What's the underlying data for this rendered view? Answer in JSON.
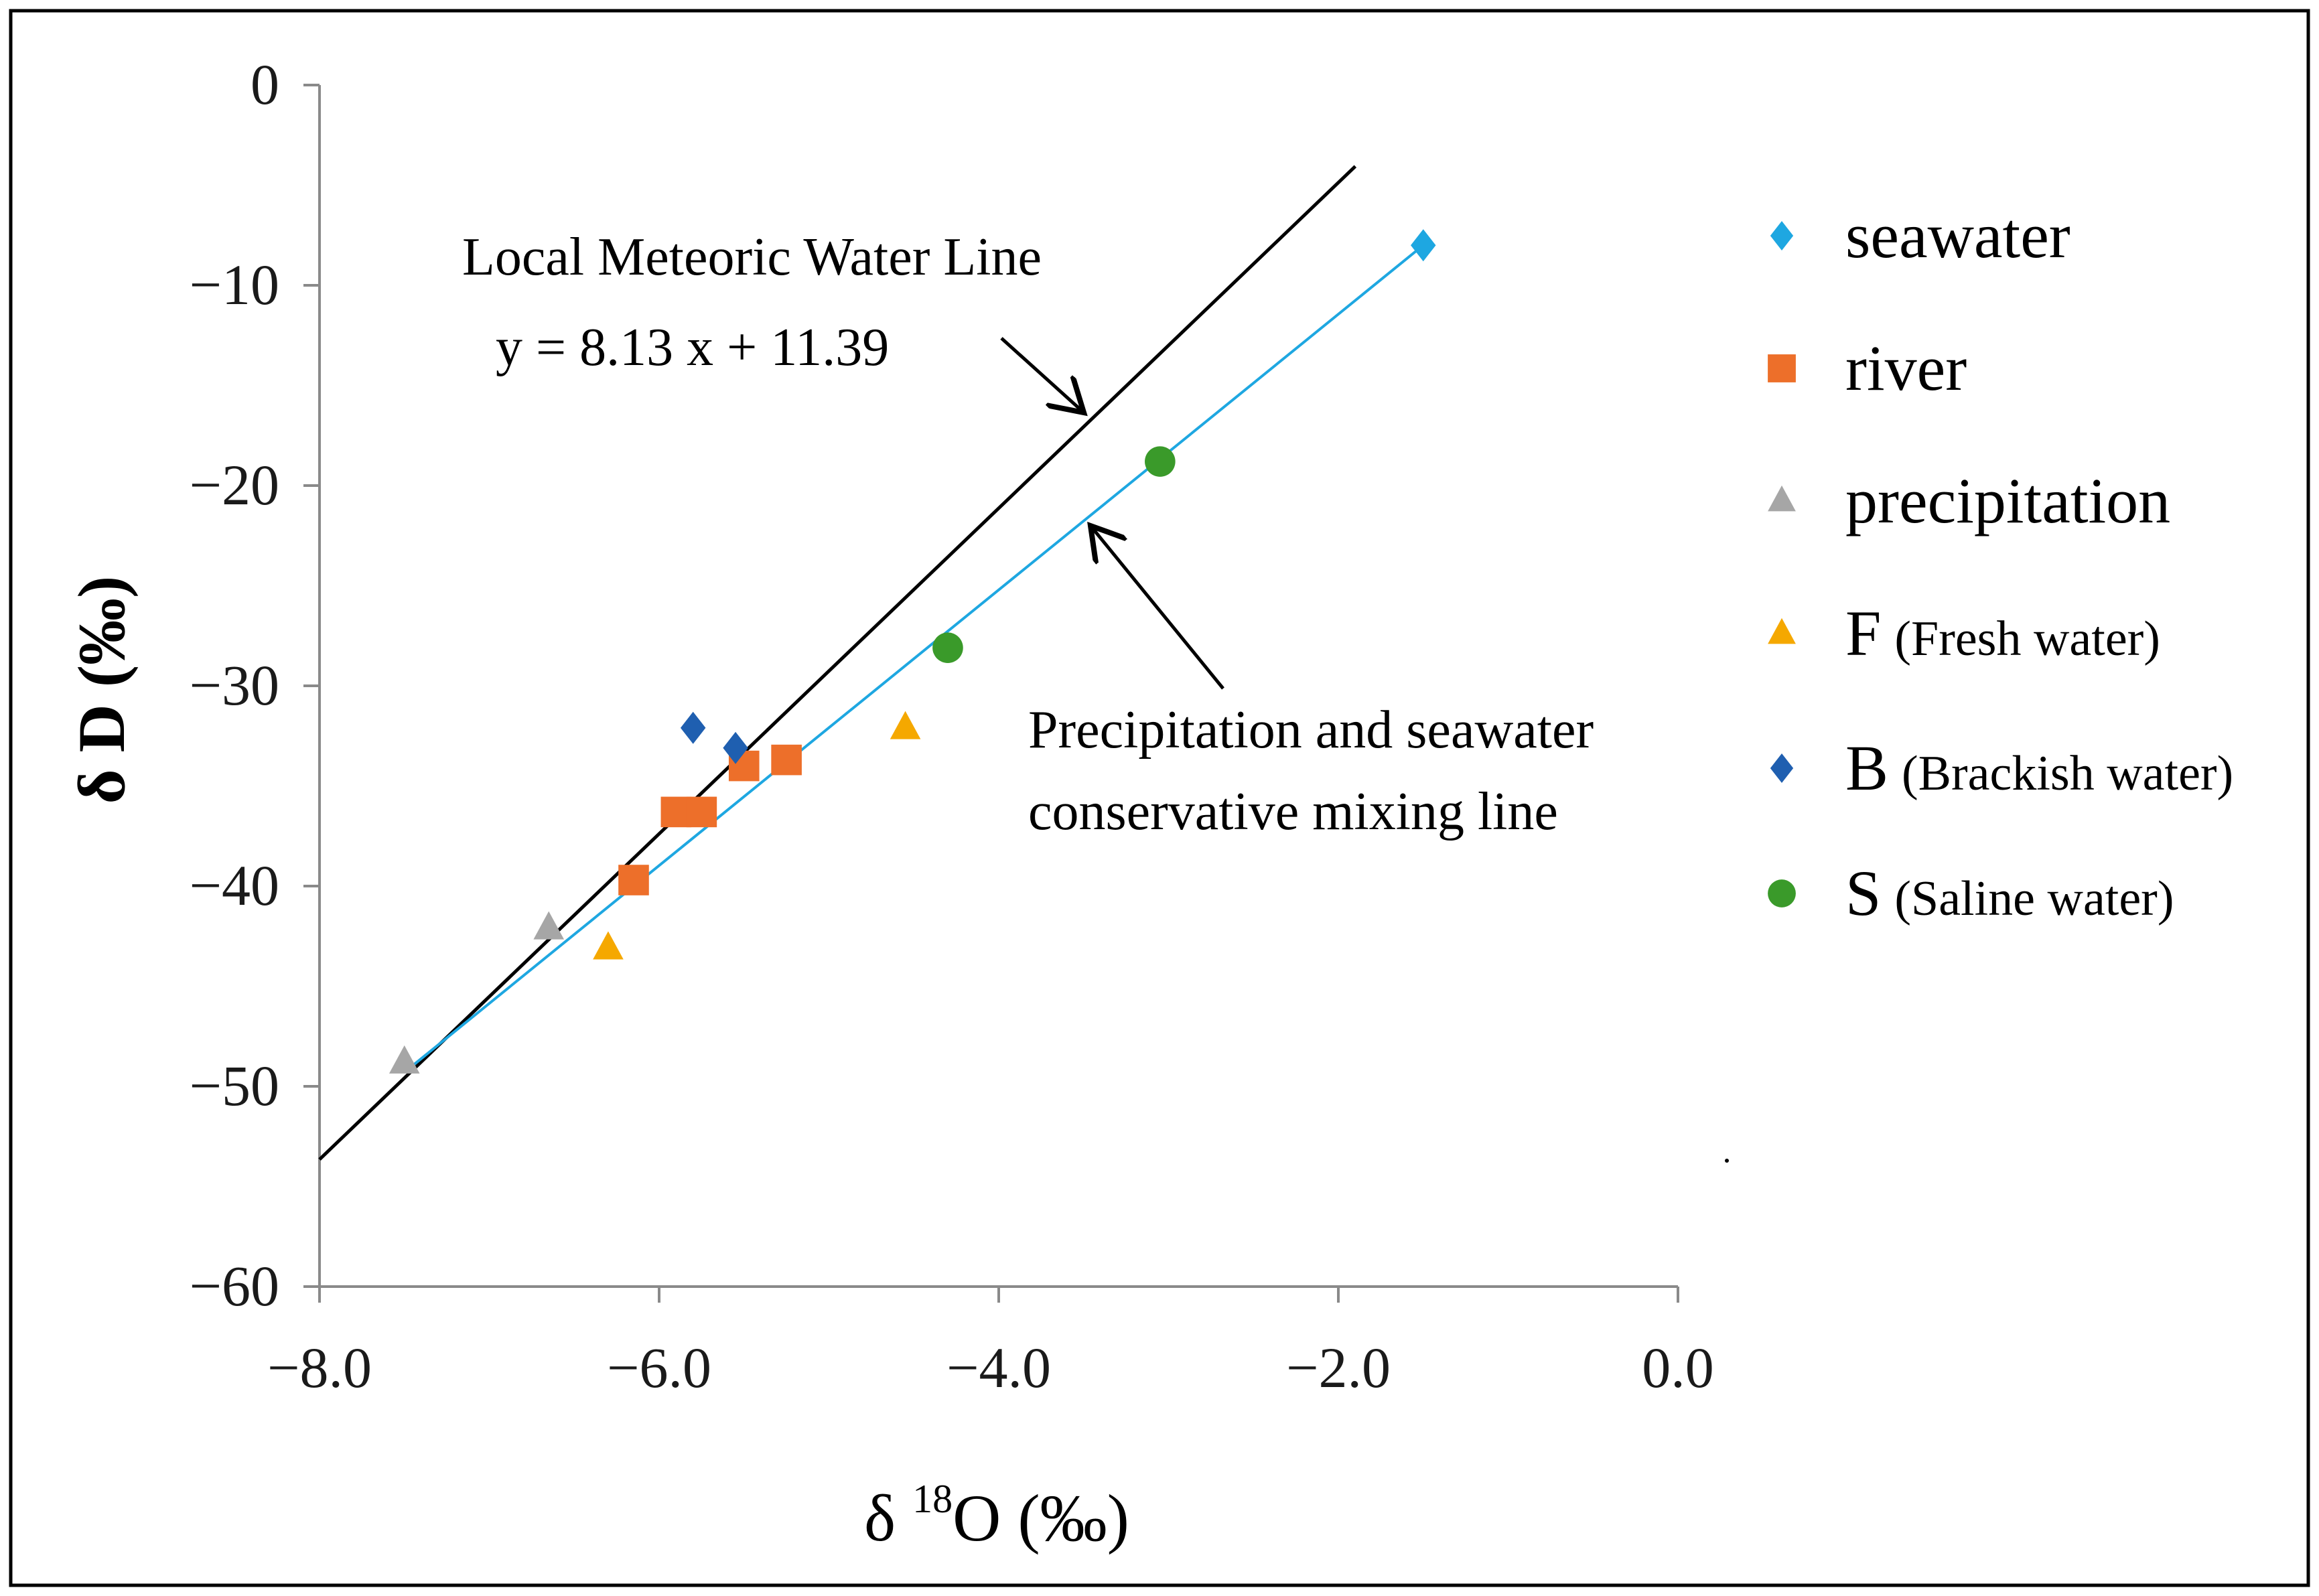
{
  "chart_data": {
    "type": "scatter",
    "xlabel": "δ 18O (‰)",
    "xlabel_prefix": "δ ",
    "xlabel_sup": "18",
    "xlabel_suffix": "O (‰)",
    "ylabel": "δ D (‰)",
    "xlim": [
      -8.0,
      0.0
    ],
    "ylim": [
      -60,
      0
    ],
    "x_ticks": [
      -8.0,
      -6.0,
      -4.0,
      -2.0,
      0.0
    ],
    "x_tick_labels": [
      "−8.0",
      "−6.0",
      "−4.0",
      "−2.0",
      "0.0"
    ],
    "y_ticks": [
      0,
      -10,
      -20,
      -30,
      -40,
      -50,
      -60
    ],
    "y_tick_labels": [
      "0",
      "−10",
      "−20",
      "−30",
      "−40",
      "−50",
      "−60"
    ],
    "grid": false,
    "legend_position": "right",
    "series": [
      {
        "name": "seawater",
        "label_main": "seawater",
        "label_sub": "",
        "marker": "diamond",
        "color": "#1ea7e1",
        "points": [
          {
            "x": -1.5,
            "y": -8.0
          }
        ]
      },
      {
        "name": "river",
        "label_main": "river",
        "label_sub": "",
        "marker": "square",
        "color": "#ed6f2a",
        "points": [
          {
            "x": -6.15,
            "y": -39.7
          },
          {
            "x": -5.9,
            "y": -36.3
          },
          {
            "x": -5.75,
            "y": -36.3
          },
          {
            "x": -5.5,
            "y": -34.0
          },
          {
            "x": -5.25,
            "y": -33.7
          }
        ]
      },
      {
        "name": "precipitation",
        "label_main": "precipitation",
        "label_sub": "",
        "marker": "triangle",
        "color": "#a6a6a6",
        "points": [
          {
            "x": -7.5,
            "y": -48.8
          },
          {
            "x": -6.65,
            "y": -42.1
          }
        ]
      },
      {
        "name": "F (Fresh water)",
        "label_main": "F",
        "label_sub": "(Fresh water)",
        "marker": "triangle",
        "color": "#f5a800",
        "points": [
          {
            "x": -6.3,
            "y": -43.1
          },
          {
            "x": -4.55,
            "y": -32.1
          }
        ]
      },
      {
        "name": "B (Brackish water)",
        "label_main": "B",
        "label_sub": "(Brackish water)",
        "marker": "diamond",
        "color": "#1f5fb0",
        "points": [
          {
            "x": -5.8,
            "y": -32.1
          },
          {
            "x": -5.55,
            "y": -33.1
          }
        ]
      },
      {
        "name": "S (Saline water)",
        "label_main": "S",
        "label_sub": "(Saline water)",
        "marker": "circle",
        "color": "#3a9a2a",
        "points": [
          {
            "x": -4.3,
            "y": -28.1
          },
          {
            "x": -3.05,
            "y": -18.8
          }
        ]
      }
    ],
    "lines": [
      {
        "name": "Local Meteoric Water Line",
        "color": "#000000",
        "slope": 8.13,
        "intercept": 11.39,
        "x_range": [
          -8.0,
          -1.9
        ]
      },
      {
        "name": "Precipitation and seawater conservative mixing line",
        "color": "#1ea7e1",
        "from": {
          "x": -7.5,
          "y": -49.3
        },
        "to": {
          "x": -1.5,
          "y": -8.0
        }
      }
    ],
    "annotations": {
      "lmwl_title": "Local Meteoric Water Line",
      "lmwl_equation": "y = 8.13 x + 11.39",
      "mixing_line_1": "Precipitation and seawater",
      "mixing_line_2": "conservative mixing line",
      "lmwl_arrow_tip": {
        "x": -3.45,
        "y": -16.7
      },
      "mixing_arrow_tip": {
        "x": -3.45,
        "y": -21.7
      }
    }
  }
}
